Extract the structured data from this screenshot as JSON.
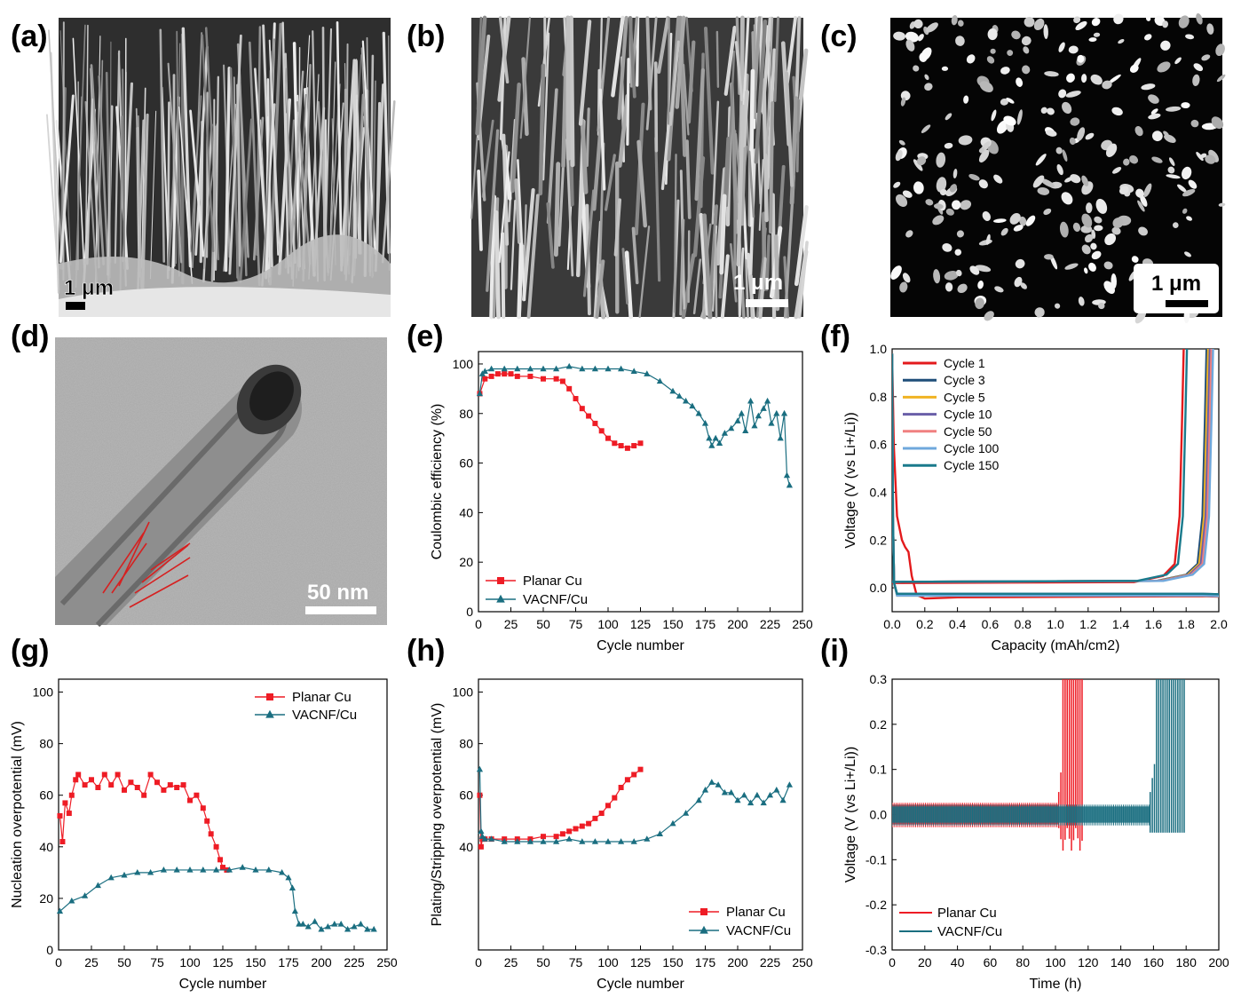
{
  "panel_labels": {
    "a": "(a)",
    "b": "(b)",
    "c": "(c)",
    "d": "(d)",
    "e": "(e)",
    "f": "(f)",
    "g": "(g)",
    "h": "(h)",
    "i": "(i)"
  },
  "micrographs": {
    "a": {
      "scale_bar": "1 μm"
    },
    "b": {
      "scale_bar": "1 μm"
    },
    "c": {
      "scale_bar": "1 μm"
    },
    "d": {
      "scale_bar": "50 nm"
    }
  },
  "colors": {
    "planar": "#ee1c25",
    "vacnf": "#1a6e80"
  },
  "chart_data": [
    {
      "id": "e",
      "type": "line",
      "xlabel": "Cycle number",
      "ylabel": "Coulombic efficiency (%)",
      "xlim": [
        0,
        250
      ],
      "ylim": [
        0,
        105
      ],
      "xticks": [
        0,
        25,
        50,
        75,
        100,
        125,
        150,
        175,
        200,
        225,
        250
      ],
      "yticks": [
        0,
        20,
        40,
        60,
        80,
        100
      ],
      "legend": "bottom-left",
      "series": [
        {
          "name": "Planar Cu",
          "color": "#ee1c25",
          "marker": "square",
          "x": [
            1,
            5,
            10,
            15,
            20,
            25,
            30,
            40,
            50,
            60,
            65,
            70,
            75,
            80,
            85,
            90,
            95,
            100,
            105,
            110,
            115,
            120,
            125
          ],
          "y": [
            88,
            94,
            95,
            96,
            96,
            96,
            95,
            95,
            94,
            94,
            93,
            90,
            86,
            82,
            79,
            76,
            73,
            70,
            68,
            67,
            66,
            67,
            68
          ]
        },
        {
          "name": "VACNF/Cu",
          "color": "#1a6e80",
          "marker": "triangle",
          "x": [
            1,
            3,
            5,
            10,
            20,
            30,
            40,
            50,
            60,
            70,
            80,
            90,
            100,
            110,
            120,
            130,
            140,
            150,
            155,
            160,
            165,
            170,
            175,
            178,
            180,
            183,
            186,
            190,
            195,
            200,
            203,
            206,
            210,
            213,
            216,
            220,
            223,
            226,
            230,
            233,
            236,
            238,
            240
          ],
          "y": [
            88,
            96,
            97,
            98,
            98,
            98,
            98,
            98,
            98,
            99,
            98,
            98,
            98,
            98,
            97,
            96,
            93,
            89,
            87,
            85,
            83,
            80,
            76,
            70,
            67,
            70,
            68,
            72,
            74,
            77,
            80,
            73,
            85,
            75,
            79,
            82,
            85,
            76,
            80,
            70,
            80,
            55,
            51
          ]
        }
      ]
    },
    {
      "id": "f",
      "type": "line",
      "xlabel": "Capacity (mAh/cm2)",
      "ylabel": "Voltage (V (vs Li+/Li))",
      "xlim": [
        0,
        2.0
      ],
      "ylim": [
        -0.1,
        1.0
      ],
      "xticks": [
        0.0,
        0.2,
        0.4,
        0.6,
        0.8,
        1.0,
        1.2,
        1.4,
        1.6,
        1.8,
        2.0
      ],
      "yticks": [
        0.0,
        0.2,
        0.4,
        0.6,
        0.8,
        1.0
      ],
      "legend": "top-left",
      "series": [
        {
          "name": "Cycle 1",
          "color": "#e31a1c",
          "end": 1.78
        },
        {
          "name": "Cycle 3",
          "color": "#1f4e79",
          "end": 1.92
        },
        {
          "name": "Cycle 5",
          "color": "#f0b323",
          "end": 1.93
        },
        {
          "name": "Cycle 10",
          "color": "#6a5fa8",
          "end": 1.94
        },
        {
          "name": "Cycle 50",
          "color": "#f08080",
          "end": 1.95
        },
        {
          "name": "Cycle 100",
          "color": "#6fa8dc",
          "end": 1.96
        },
        {
          "name": "Cycle 150",
          "color": "#1a7a8c",
          "end": 1.8
        }
      ]
    },
    {
      "id": "g",
      "type": "line",
      "xlabel": "Cycle number",
      "ylabel": "Nucleation overpotential (mV)",
      "xlim": [
        0,
        250
      ],
      "ylim": [
        0,
        105
      ],
      "xticks": [
        0,
        25,
        50,
        75,
        100,
        125,
        150,
        175,
        200,
        225,
        250
      ],
      "yticks": [
        0,
        20,
        40,
        60,
        80,
        100
      ],
      "legend": "top-right",
      "series": [
        {
          "name": "Planar Cu",
          "color": "#ee1c25",
          "marker": "square",
          "x": [
            1,
            3,
            5,
            8,
            10,
            13,
            15,
            20,
            25,
            30,
            35,
            40,
            45,
            50,
            55,
            60,
            65,
            70,
            75,
            80,
            85,
            90,
            95,
            100,
            105,
            110,
            113,
            116,
            120,
            123,
            125,
            128
          ],
          "y": [
            52,
            42,
            57,
            53,
            60,
            66,
            68,
            64,
            66,
            63,
            68,
            64,
            68,
            62,
            65,
            63,
            60,
            68,
            65,
            62,
            64,
            63,
            64,
            58,
            60,
            55,
            50,
            45,
            40,
            35,
            32,
            31
          ]
        },
        {
          "name": "VACNF/Cu",
          "color": "#1a6e80",
          "marker": "triangle",
          "x": [
            1,
            10,
            20,
            30,
            40,
            50,
            60,
            70,
            80,
            90,
            100,
            110,
            120,
            130,
            140,
            150,
            160,
            170,
            175,
            178,
            180,
            183,
            186,
            190,
            195,
            200,
            205,
            210,
            215,
            220,
            225,
            230,
            235,
            240
          ],
          "y": [
            15,
            19,
            21,
            25,
            28,
            29,
            30,
            30,
            31,
            31,
            31,
            31,
            31,
            31,
            32,
            31,
            31,
            30,
            28,
            24,
            15,
            10,
            10,
            9,
            11,
            8,
            9,
            10,
            10,
            8,
            9,
            10,
            8,
            8
          ]
        }
      ]
    },
    {
      "id": "h",
      "type": "line",
      "xlabel": "Cycle number",
      "ylabel": "Plating/Stripping overpotential (mV)",
      "xlim": [
        0,
        250
      ],
      "ylim": [
        0,
        105
      ],
      "xticks": [
        0,
        25,
        50,
        75,
        100,
        125,
        150,
        175,
        200,
        225,
        250
      ],
      "yticks": [
        40,
        60,
        80,
        100
      ],
      "legend": "bottom-right",
      "series": [
        {
          "name": "Planar Cu",
          "color": "#ee1c25",
          "marker": "square",
          "x": [
            1,
            2,
            3,
            5,
            10,
            20,
            30,
            40,
            50,
            60,
            65,
            70,
            75,
            80,
            85,
            90,
            95,
            100,
            105,
            110,
            115,
            120,
            125
          ],
          "y": [
            60,
            40,
            43,
            43,
            43,
            43,
            43,
            43,
            44,
            44,
            45,
            46,
            47,
            48,
            49,
            51,
            53,
            56,
            59,
            63,
            66,
            68,
            70
          ]
        },
        {
          "name": "VACNF/Cu",
          "color": "#1a6e80",
          "marker": "triangle",
          "x": [
            1,
            2,
            3,
            5,
            10,
            20,
            30,
            40,
            50,
            60,
            70,
            80,
            90,
            100,
            110,
            120,
            130,
            140,
            150,
            160,
            170,
            175,
            180,
            185,
            190,
            195,
            200,
            205,
            210,
            215,
            220,
            225,
            230,
            235,
            240
          ],
          "y": [
            70,
            46,
            44,
            43,
            43,
            42,
            42,
            42,
            42,
            42,
            43,
            42,
            42,
            42,
            42,
            42,
            43,
            45,
            49,
            53,
            58,
            62,
            65,
            64,
            61,
            61,
            58,
            60,
            57,
            60,
            57,
            60,
            62,
            58,
            64
          ]
        }
      ]
    },
    {
      "id": "i",
      "type": "line",
      "xlabel": "Time (h)",
      "ylabel": "Voltage (V (vs Li+/Li))",
      "xlim": [
        0,
        200
      ],
      "ylim": [
        -0.3,
        0.3
      ],
      "xticks": [
        0,
        20,
        40,
        60,
        80,
        100,
        120,
        140,
        160,
        180,
        200
      ],
      "yticks": [
        -0.3,
        -0.2,
        -0.1,
        0.0,
        0.1,
        0.2,
        0.3
      ],
      "legend": "bottom-left",
      "series": [
        {
          "name": "Planar Cu",
          "color": "#ee1c25",
          "t_end": 117,
          "t_fail": 102
        },
        {
          "name": "VACNF/Cu",
          "color": "#1a6e80",
          "t_end": 179,
          "t_fail": 158
        }
      ]
    }
  ]
}
